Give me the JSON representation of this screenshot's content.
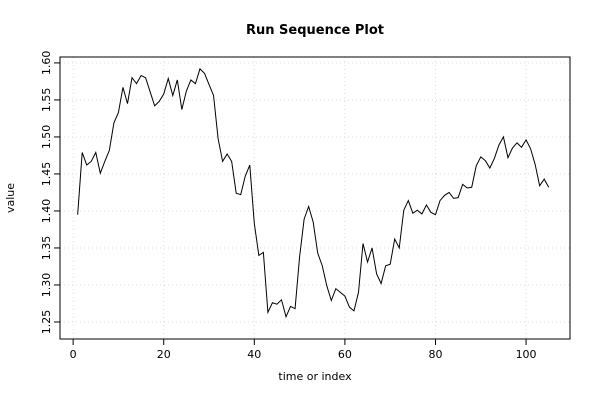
{
  "chart_data": {
    "type": "line",
    "title": "Run Sequence Plot",
    "x_label": "time or index",
    "y_label": "value",
    "x": [
      1,
      2,
      3,
      4,
      5,
      6,
      7,
      8,
      9,
      10,
      11,
      12,
      13,
      14,
      15,
      16,
      17,
      18,
      19,
      20,
      21,
      22,
      23,
      24,
      25,
      26,
      27,
      28,
      29,
      30,
      31,
      32,
      33,
      34,
      35,
      36,
      37,
      38,
      39,
      40,
      41,
      42,
      43,
      44,
      45,
      46,
      47,
      48,
      49,
      50,
      51,
      52,
      53,
      54,
      55,
      56,
      57,
      58,
      59,
      60,
      61,
      62,
      63,
      64,
      65,
      66,
      67,
      68,
      69,
      70,
      71,
      72,
      73,
      74,
      75,
      76,
      77,
      78,
      79,
      80,
      81,
      82,
      83,
      84,
      85,
      86,
      87,
      88,
      89,
      90,
      91,
      92,
      93,
      94,
      95,
      96,
      97,
      98,
      99,
      100,
      101,
      102,
      103,
      104,
      105
    ],
    "series": [
      {
        "color": "#000000",
        "values": [
          1.395,
          1.479,
          1.462,
          1.467,
          1.479,
          1.451,
          1.467,
          1.482,
          1.519,
          1.533,
          1.567,
          1.545,
          1.58,
          1.572,
          1.583,
          1.58,
          1.561,
          1.542,
          1.548,
          1.558,
          1.579,
          1.556,
          1.577,
          1.537,
          1.562,
          1.577,
          1.572,
          1.592,
          1.586,
          1.571,
          1.556,
          1.498,
          1.467,
          1.477,
          1.467,
          1.424,
          1.422,
          1.447,
          1.462,
          1.383,
          1.34,
          1.344,
          1.263,
          1.276,
          1.274,
          1.28,
          1.257,
          1.271,
          1.268,
          1.338,
          1.389,
          1.406,
          1.385,
          1.343,
          1.326,
          1.299,
          1.279,
          1.295,
          1.29,
          1.285,
          1.27,
          1.265,
          1.29,
          1.356,
          1.331,
          1.35,
          1.315,
          1.302,
          1.326,
          1.328,
          1.362,
          1.35,
          1.401,
          1.414,
          1.397,
          1.401,
          1.396,
          1.408,
          1.398,
          1.395,
          1.414,
          1.421,
          1.425,
          1.417,
          1.418,
          1.436,
          1.431,
          1.432,
          1.461,
          1.473,
          1.468,
          1.458,
          1.471,
          1.489,
          1.5,
          1.472,
          1.485,
          1.492,
          1.486,
          1.496,
          1.484,
          1.463,
          1.434,
          1.443,
          1.432
        ]
      }
    ],
    "xlim": [
      -2.9,
      109.7
    ],
    "ylim": [
      1.227,
      1.608
    ],
    "xticks": [
      0,
      20,
      40,
      60,
      80,
      100
    ],
    "yticks": [
      1.25,
      {
        "value": 1.3,
        "label": "1.30"
      },
      1.35,
      {
        "value": 1.4,
        "label": "1.40"
      },
      1.45,
      {
        "value": 1.5,
        "label": "1.50"
      },
      1.55,
      {
        "value": 1.6,
        "label": "1.60"
      }
    ],
    "grid": true
  }
}
